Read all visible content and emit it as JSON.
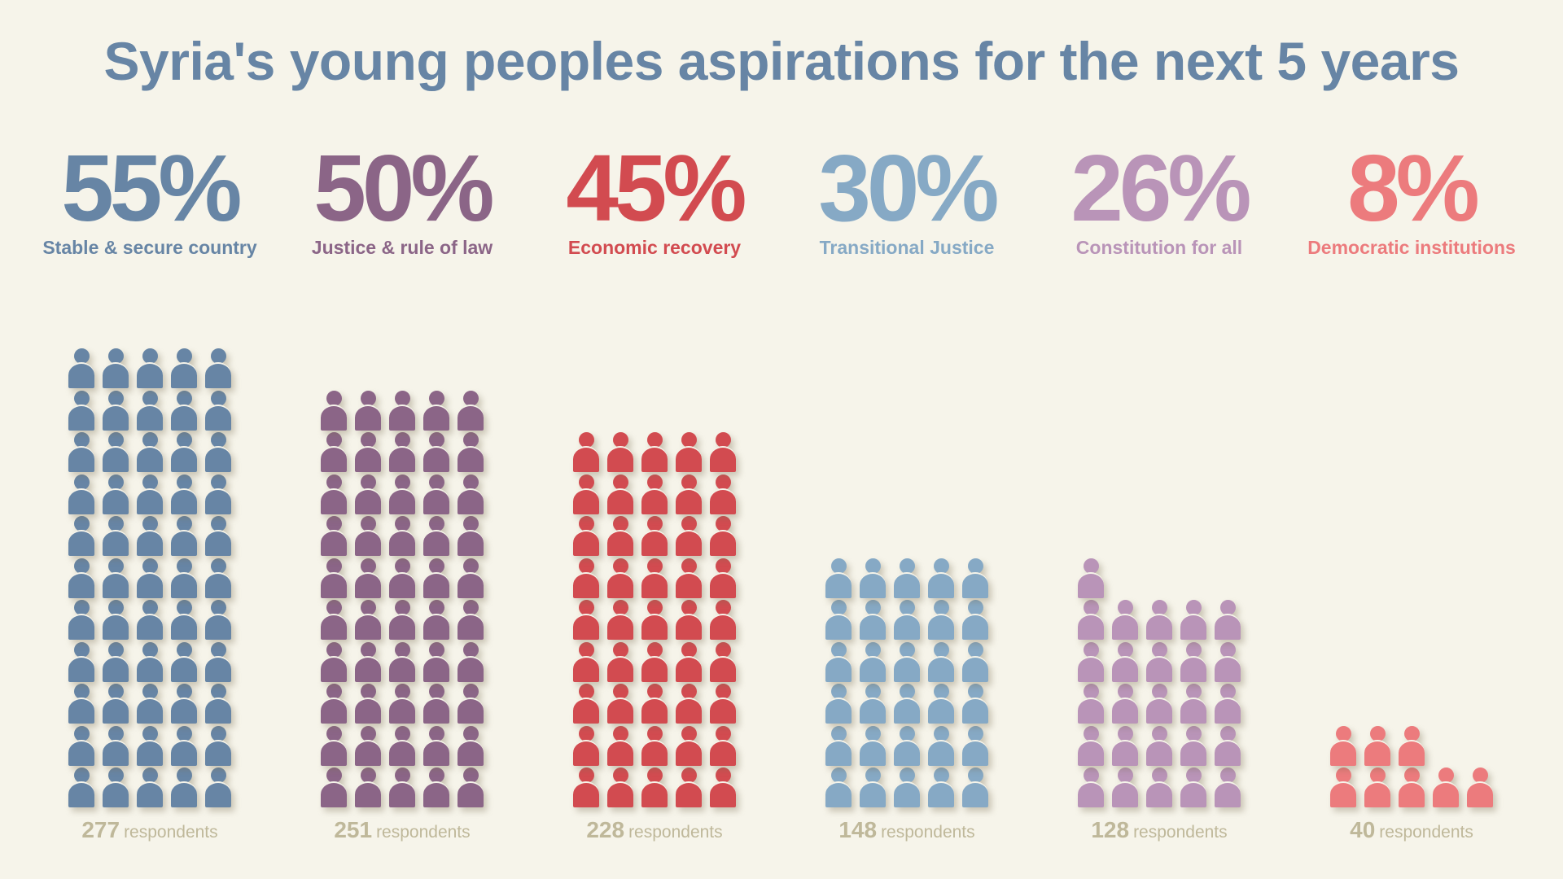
{
  "title": "Syria's young peoples aspirations for the next 5 years",
  "respondents_suffix": "respondents",
  "colors": {
    "background": "#f6f4ea",
    "respondents": "#bfb89a"
  },
  "chart_data": {
    "type": "bar",
    "subtype": "pictogram",
    "title": "Syria's young peoples aspirations for the next 5 years",
    "icon": "person-icon",
    "icons_per_row": 5,
    "categories": [
      "Stable & secure country",
      "Justice & rule of law",
      "Economic recovery",
      "Transitional Justice",
      "Constitution for all",
      "Democratic institutions"
    ],
    "series": [
      {
        "name": "percent",
        "values": [
          55,
          50,
          45,
          30,
          26,
          8
        ],
        "labels": [
          "55%",
          "50%",
          "45%",
          "30%",
          "26%",
          "8%"
        ]
      },
      {
        "name": "respondents",
        "values": [
          277,
          251,
          228,
          148,
          128,
          40
        ]
      }
    ],
    "colors": [
      "#6785a5",
      "#8b6587",
      "#d24b50",
      "#86a9c5",
      "#b994b8",
      "#ec7b7d"
    ]
  }
}
